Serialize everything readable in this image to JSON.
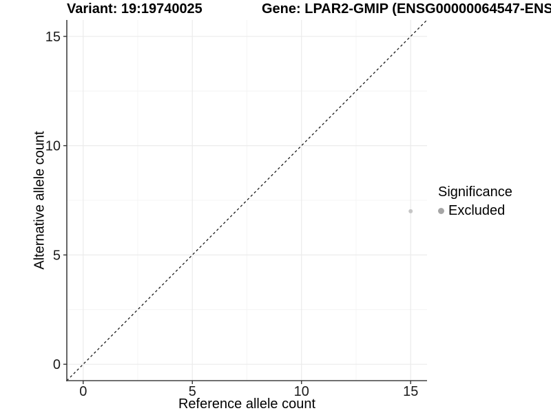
{
  "chart_data": {
    "type": "scatter",
    "titles": {
      "left": "Variant: 19:19740025",
      "right": "Gene: LPAR2-GMIP (ENSG00000064547-ENS"
    },
    "xlabel": "Reference allele count",
    "ylabel": "Alternative allele count",
    "x_ticks": [
      0,
      5,
      10,
      15
    ],
    "y_ticks": [
      0,
      5,
      10,
      15
    ],
    "x_minor_ticks": [
      2.5,
      7.5,
      12.5
    ],
    "y_minor_ticks": [
      2.5,
      7.5,
      12.5
    ],
    "xlim": [
      -0.75,
      15.75
    ],
    "ylim": [
      -0.75,
      15.75
    ],
    "grid": "major-and-minor",
    "reference_line": {
      "type": "identity-diagonal",
      "style": "dashed",
      "color": "#1a1a1a"
    },
    "series": [
      {
        "name": "Excluded",
        "color": "#c6c6c6",
        "points": [
          {
            "x": 15,
            "y": 7
          }
        ]
      }
    ],
    "legend": {
      "title": "Significance",
      "position": "right",
      "entries": [
        {
          "label": "Excluded",
          "color": "#a6a6a6"
        }
      ]
    },
    "colors": {
      "axis_line": "#404040",
      "tick_mark": "#333333",
      "grid_major": "#ebebeb",
      "grid_minor": "#f4f4f4",
      "tick_label": "#1a1a1a"
    }
  }
}
